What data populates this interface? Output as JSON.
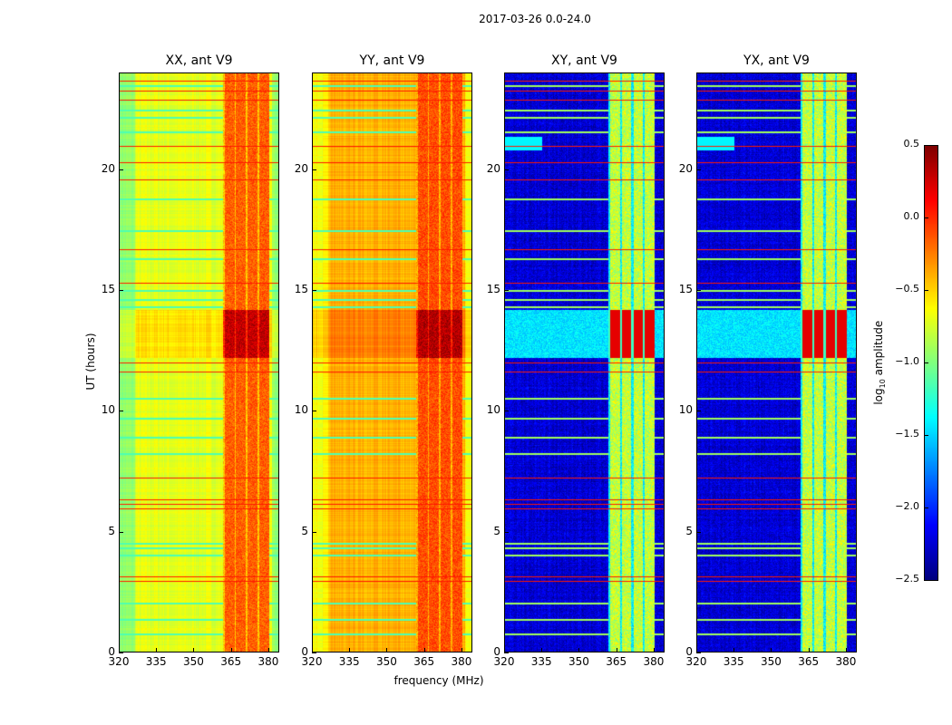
{
  "chart_data": {
    "type": "heatmap",
    "title": "2017-03-26 0.0-24.0",
    "xlabel": "frequency (MHz)",
    "ylabel": "UT (hours)",
    "xlim": [
      320,
      384.4
    ],
    "ylim": [
      0,
      24
    ],
    "xticks": [
      320,
      335,
      350,
      365,
      380
    ],
    "yticks": [
      0,
      5,
      10,
      15,
      20
    ],
    "colormap": "jet",
    "colorbar": {
      "label_prefix": "log",
      "label_sub": "10",
      "label_suffix": " amplitude",
      "range": [
        -2.5,
        0.5
      ],
      "ticks": [
        "0.5",
        "0.0",
        "−0.5",
        "−1.0",
        "−1.5",
        "−2.0",
        "−2.5"
      ],
      "tick_values": [
        0.5,
        0.0,
        -0.5,
        -1.0,
        -1.5,
        -2.0,
        -2.5
      ]
    },
    "panels": [
      {
        "title": "XX, ant V9",
        "baseline": -0.7,
        "rfi_band_level": -0.15,
        "kind": "parallel"
      },
      {
        "title": "YY, ant V9",
        "baseline": -0.4,
        "rfi_band_level": -0.1,
        "kind": "parallel"
      },
      {
        "title": "XY, ant V9",
        "baseline": -2.25,
        "rfi_band_level": -0.8,
        "kind": "cross"
      },
      {
        "title": "YX, ant V9",
        "baseline": -2.25,
        "rfi_band_level": -0.8,
        "kind": "cross"
      }
    ],
    "rfi_band_mhz": [
      362,
      381
    ],
    "strong_interval_hours": [
      12.2,
      14.2
    ],
    "red_line_hours": [
      23.7,
      23.3,
      22.9,
      21.0,
      20.3,
      19.6,
      16.7,
      15.3,
      12.0,
      11.6,
      7.2,
      6.3,
      6.1,
      5.9,
      3.1,
      2.9
    ],
    "cyan_line_hours": [
      23.5,
      22.5,
      22.2,
      21.6,
      18.8,
      17.5,
      16.3,
      15.0,
      14.6,
      14.3,
      10.5,
      9.7,
      8.9,
      8.2,
      4.5,
      4.3,
      4.0,
      2.0,
      1.3,
      0.7
    ]
  }
}
